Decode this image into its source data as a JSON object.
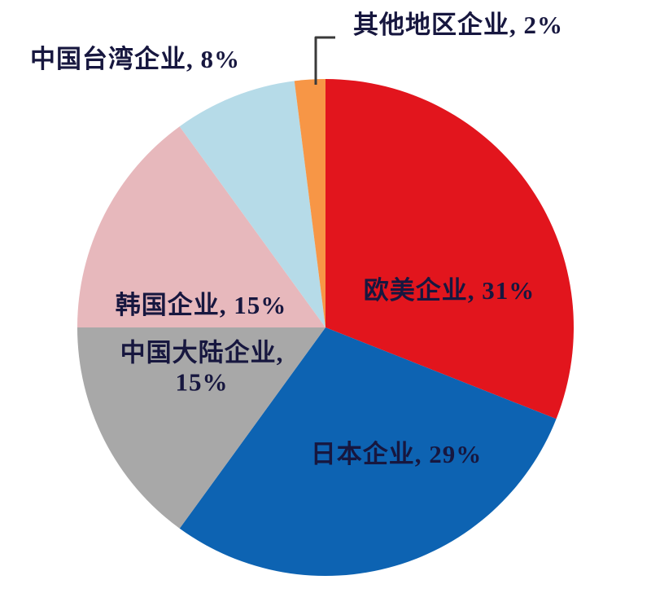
{
  "chart_data": {
    "type": "pie",
    "direction": "clockwise",
    "start_angle_deg": 0,
    "legend_position": "none",
    "label_text_color": "#17173f",
    "leader_line_color": "#3a3a3a",
    "background_color": "#ffffff",
    "slices": [
      {
        "id": "europe-us",
        "label": "欧美企业",
        "value": 31,
        "unit": "%",
        "color": "#e2151d",
        "display": "欧美企业, 31%",
        "label_placement": "inside"
      },
      {
        "id": "japan",
        "label": "日本企业",
        "value": 29,
        "unit": "%",
        "color": "#0d63b2",
        "display": "日本企业, 29%",
        "label_placement": "inside"
      },
      {
        "id": "mainland-china",
        "label": "中国大陆企业",
        "value": 15,
        "unit": "%",
        "color": "#a8a8a8",
        "display": "中国大陆企业, 15%",
        "label_placement": "inside"
      },
      {
        "id": "korea",
        "label": "韩国企业",
        "value": 15,
        "unit": "%",
        "color": "#e7b8bc",
        "display": "韩国企业, 15%",
        "label_placement": "inside"
      },
      {
        "id": "taiwan",
        "label": "中国台湾企业",
        "value": 8,
        "unit": "%",
        "color": "#b6dbe8",
        "display": "中国台湾企业, 8%",
        "label_placement": "outside"
      },
      {
        "id": "other-regions",
        "label": "其他地区企业",
        "value": 2,
        "unit": "%",
        "color": "#f79646",
        "display": "其他地区企业, 2%",
        "label_placement": "outside-with-leader-line"
      }
    ]
  },
  "labels": {
    "taiwan": "中国台湾企业, 8%",
    "other_regions": "其他地区企业, 2%",
    "europe_us": "欧美企业, 31%",
    "japan": "日本企业, 29%",
    "korea": "韩国企业, 15%",
    "mainland_line1": "中国大陆企业,",
    "mainland_line2": "15%"
  }
}
